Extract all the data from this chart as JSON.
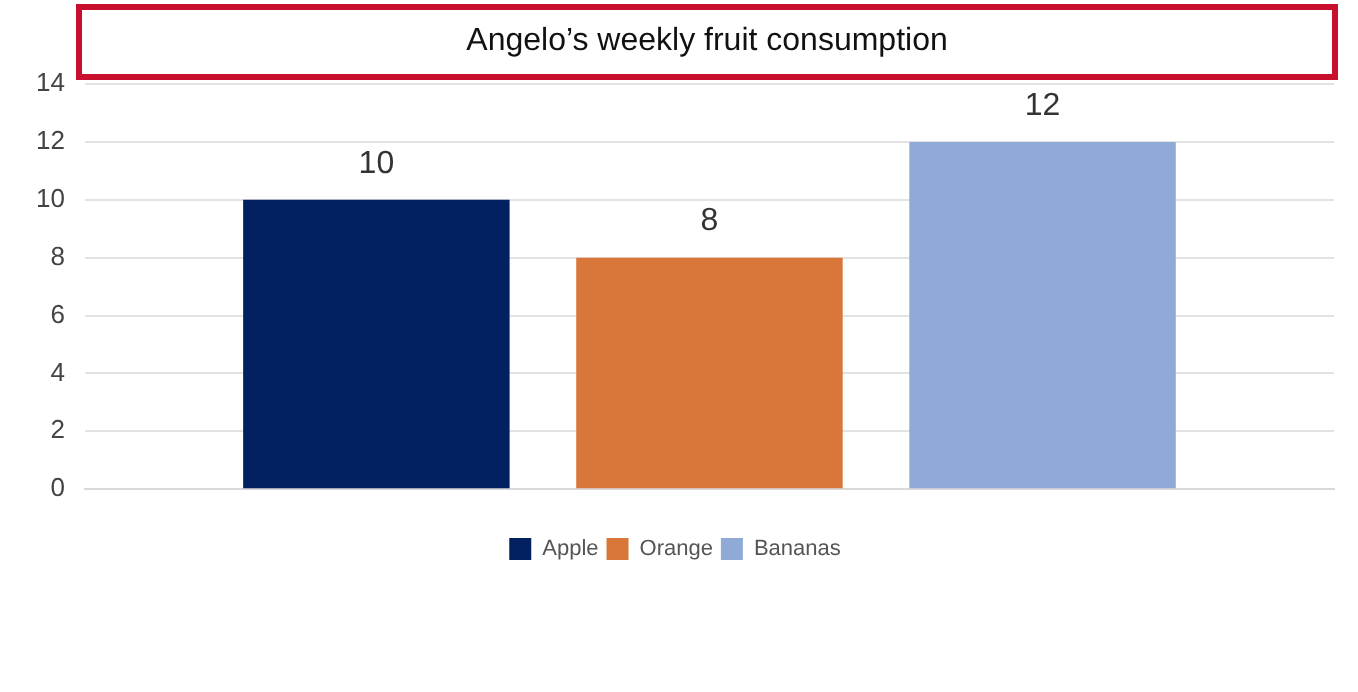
{
  "chart_data": {
    "type": "bar",
    "title": "Angelo’s weekly fruit consumption",
    "categories": [
      null
    ],
    "series": [
      {
        "name": "Apple",
        "color": "#002060",
        "values": [
          10
        ]
      },
      {
        "name": "Orange",
        "color": "#d9773a",
        "values": [
          8
        ]
      },
      {
        "name": "Bananas",
        "color": "#8faad6",
        "values": [
          12
        ]
      }
    ],
    "ylim": [
      0,
      14
    ],
    "yticks": [
      0,
      2,
      4,
      6,
      8,
      10,
      12,
      14
    ],
    "grid": "y",
    "legend": "bottom",
    "data_labels": true
  }
}
